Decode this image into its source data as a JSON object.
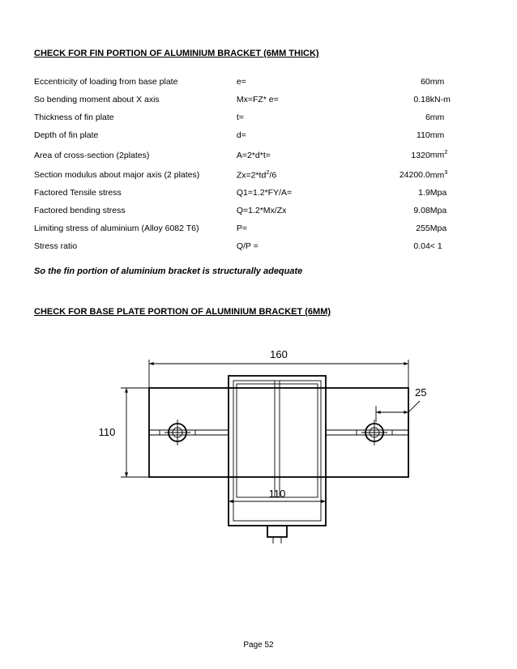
{
  "section1": {
    "title": "CHECK FOR FIN PORTION OF ALUMINIUM  BRACKET (6MM THICK)",
    "rows": [
      {
        "desc": "Eccentricity of loading from base plate",
        "expr": "e=",
        "val": "60",
        "unit": "mm"
      },
      {
        "desc": "So bending moment about X axis",
        "expr": "Mx=FZ* e=",
        "val": "0.18",
        "unit": "kN-m"
      },
      {
        "desc": "Thickness of fin plate",
        "expr": "t=",
        "val": "6",
        "unit": "mm"
      },
      {
        "desc": "Depth of fin plate",
        "expr": "d=",
        "val": "110",
        "unit": "mm"
      },
      {
        "desc": "Area of cross-section (2plates)",
        "expr": "A=2*d*t=",
        "val": "1320",
        "unit": "mm",
        "sup": "2"
      },
      {
        "desc": "Section modulus about major axis (2 plates)",
        "expr": "Zx=2*td",
        "exprSup": "2",
        "exprTail": "/6",
        "val": "24200.0",
        "unit": "mm",
        "sup": "3"
      },
      {
        "desc": "Factored Tensile stress",
        "expr": "Q1=1.2*FY/A=",
        "val": "1.9",
        "unit": "Mpa"
      },
      {
        "desc": "Factored bending stress",
        "expr": "Q=1.2*Mx/Zx",
        "val": "9.08",
        "unit": "Mpa"
      },
      {
        "desc": "Limiting stress of aluminium (Alloy 6082 T6)",
        "expr": "P=",
        "val": "255",
        "unit": "Mpa"
      },
      {
        "desc": "Stress ratio",
        "expr": "Q/P =",
        "val": "0.04",
        "unit": "< 1"
      }
    ],
    "conclusion": "So the  fin portion of aluminium bracket is structurally adequate"
  },
  "section2": {
    "title": "CHECK FOR BASE PLATE PORTION OF ALUMINIUM BRACKET (6MM)"
  },
  "diagram": {
    "width_svg": 430,
    "height_svg": 280,
    "stroke": "#000000",
    "stroke_main": 1.8,
    "stroke_thin": 0.9,
    "fontsize": 13,
    "dims": {
      "outer_width_label": "160",
      "left_height_label": "110",
      "right_small_label": "25",
      "inner_width_label": "110"
    }
  },
  "footer": {
    "page": "Page 52"
  }
}
